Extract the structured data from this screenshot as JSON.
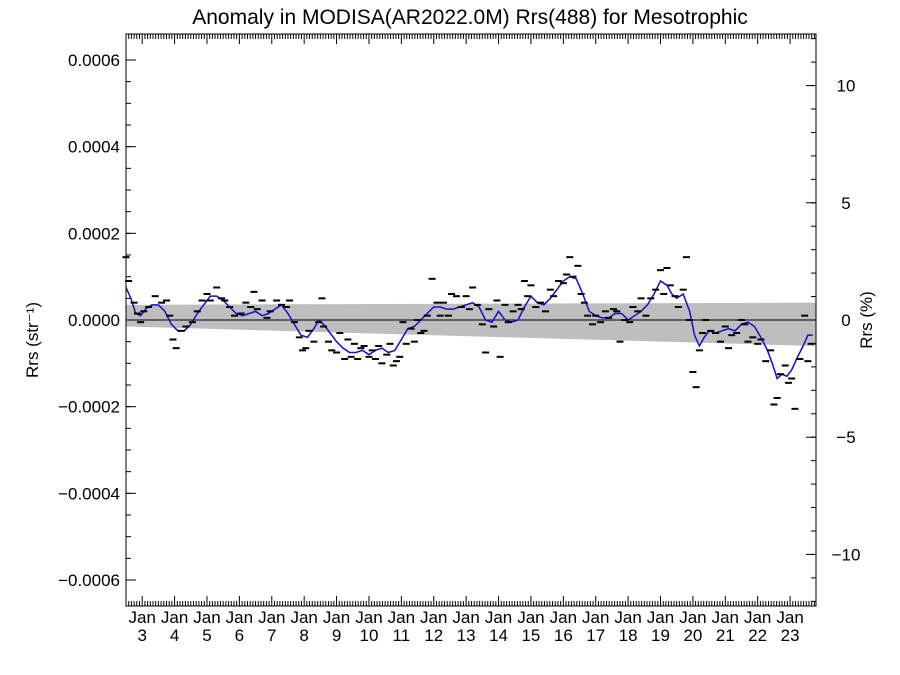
{
  "chart_data": {
    "type": "scatter",
    "title": "Anomaly in MODISA(AR2022.0M) Rrs(488) for Mesotrophic",
    "ylabel_left": "Rrs (str⁻¹)",
    "ylabel_right": "Rrs (%)",
    "xlabel": "",
    "x_unit": "year (2002 + fraction)",
    "xlim": [
      2002.5,
      2023.8
    ],
    "ylim_left": [
      -0.00066,
      0.00066
    ],
    "ylim_right": [
      -12.2,
      12.2
    ],
    "left_ticks": [
      {
        "value": 0.0006,
        "label": "0.0006"
      },
      {
        "value": 0.0004,
        "label": "0.0004"
      },
      {
        "value": 0.0002,
        "label": "0.0002"
      },
      {
        "value": 0.0,
        "label": "0.0000"
      },
      {
        "value": -0.0002,
        "label": "−0.0002"
      },
      {
        "value": -0.0004,
        "label": "−0.0004"
      },
      {
        "value": -0.0006,
        "label": "−0.0006"
      }
    ],
    "right_ticks": [
      {
        "value": 10,
        "label": "10"
      },
      {
        "value": 5,
        "label": "5"
      },
      {
        "value": 0,
        "label": "0"
      },
      {
        "value": -5,
        "label": "−5"
      },
      {
        "value": -10,
        "label": "−10"
      }
    ],
    "x_tick_month_label": "Jan",
    "x_ticks": [
      {
        "value": 2003,
        "label": "3"
      },
      {
        "value": 2004,
        "label": "4"
      },
      {
        "value": 2005,
        "label": "5"
      },
      {
        "value": 2006,
        "label": "6"
      },
      {
        "value": 2007,
        "label": "7"
      },
      {
        "value": 2008,
        "label": "8"
      },
      {
        "value": 2009,
        "label": "9"
      },
      {
        "value": 2010,
        "label": "10"
      },
      {
        "value": 2011,
        "label": "11"
      },
      {
        "value": 2012,
        "label": "12"
      },
      {
        "value": 2013,
        "label": "13"
      },
      {
        "value": 2014,
        "label": "14"
      },
      {
        "value": 2015,
        "label": "15"
      },
      {
        "value": 2016,
        "label": "16"
      },
      {
        "value": 2017,
        "label": "17"
      },
      {
        "value": 2018,
        "label": "18"
      },
      {
        "value": 2019,
        "label": "19"
      },
      {
        "value": 2020,
        "label": "20"
      },
      {
        "value": 2021,
        "label": "21"
      },
      {
        "value": 2022,
        "label": "22"
      },
      {
        "value": 2023,
        "label": "23"
      }
    ],
    "band": {
      "color": "#bebebe",
      "upper": [
        [
          2002.5,
          3.5e-05
        ],
        [
          2023.8,
          4e-05
        ]
      ],
      "lower": [
        [
          2002.5,
          -1.5e-05
        ],
        [
          2023.8,
          -6e-05
        ]
      ]
    },
    "zero_line": true,
    "smooth_series": {
      "color": "#1010d0",
      "points": [
        [
          2002.5,
          7.5e-05
        ],
        [
          2002.65,
          5e-05
        ],
        [
          2002.8,
          1.5e-05
        ],
        [
          2002.95,
          1e-05
        ],
        [
          2003.1,
          2.5e-05
        ],
        [
          2003.3,
          3.5e-05
        ],
        [
          2003.5,
          3.5e-05
        ],
        [
          2003.7,
          2e-05
        ],
        [
          2003.9,
          -1e-05
        ],
        [
          2004.1,
          -2.5e-05
        ],
        [
          2004.3,
          -2.5e-05
        ],
        [
          2004.5,
          -1e-05
        ],
        [
          2004.7,
          1.5e-05
        ],
        [
          2004.9,
          3.5e-05
        ],
        [
          2005.1,
          5.5e-05
        ],
        [
          2005.3,
          5.5e-05
        ],
        [
          2005.5,
          4.5e-05
        ],
        [
          2005.7,
          3e-05
        ],
        [
          2005.9,
          1.5e-05
        ],
        [
          2006.1,
          1e-05
        ],
        [
          2006.3,
          1.5e-05
        ],
        [
          2006.5,
          2e-05
        ],
        [
          2006.7,
          1e-05
        ],
        [
          2006.9,
          1.5e-05
        ],
        [
          2007.1,
          2.5e-05
        ],
        [
          2007.3,
          3.5e-05
        ],
        [
          2007.5,
          1.5e-05
        ],
        [
          2007.7,
          -1e-05
        ],
        [
          2007.9,
          -3.5e-05
        ],
        [
          2008.1,
          -4e-05
        ],
        [
          2008.3,
          -2e-05
        ],
        [
          2008.45,
          0.0
        ],
        [
          2008.6,
          -1e-05
        ],
        [
          2008.8,
          -3e-05
        ],
        [
          2009.0,
          -5e-05
        ],
        [
          2009.2,
          -6.5e-05
        ],
        [
          2009.4,
          -7.5e-05
        ],
        [
          2009.6,
          -7.5e-05
        ],
        [
          2009.8,
          -7e-05
        ],
        [
          2010.0,
          -8e-05
        ],
        [
          2010.2,
          -7e-05
        ],
        [
          2010.4,
          -6.5e-05
        ],
        [
          2010.6,
          -7.5e-05
        ],
        [
          2010.8,
          -7e-05
        ],
        [
          2011.0,
          -4.5e-05
        ],
        [
          2011.2,
          -2e-05
        ],
        [
          2011.4,
          -1.5e-05
        ],
        [
          2011.6,
          -0.0
        ],
        [
          2011.8,
          1.5e-05
        ],
        [
          2012.0,
          3e-05
        ],
        [
          2012.2,
          3e-05
        ],
        [
          2012.4,
          2.5e-05
        ],
        [
          2012.6,
          2.5e-05
        ],
        [
          2012.8,
          3e-05
        ],
        [
          2013.0,
          3.5e-05
        ],
        [
          2013.2,
          4e-05
        ],
        [
          2013.4,
          3e-05
        ],
        [
          2013.6,
          0.0
        ],
        [
          2013.8,
          -5e-06
        ],
        [
          2014.0,
          2e-05
        ],
        [
          2014.2,
          0.0
        ],
        [
          2014.4,
          -5e-06
        ],
        [
          2014.6,
          0.0
        ],
        [
          2014.8,
          3e-05
        ],
        [
          2015.0,
          5.5e-05
        ],
        [
          2015.2,
          4e-05
        ],
        [
          2015.4,
          3.5e-05
        ],
        [
          2015.6,
          5e-05
        ],
        [
          2015.8,
          7e-05
        ],
        [
          2016.0,
          9e-05
        ],
        [
          2016.2,
          0.0001
        ],
        [
          2016.4,
          9.5e-05
        ],
        [
          2016.6,
          6e-05
        ],
        [
          2016.8,
          2e-05
        ],
        [
          2017.0,
          1e-05
        ],
        [
          2017.2,
          5e-06
        ],
        [
          2017.4,
          5e-06
        ],
        [
          2017.6,
          1.5e-05
        ],
        [
          2017.8,
          1.5e-05
        ],
        [
          2018.0,
          0.0
        ],
        [
          2018.2,
          1e-05
        ],
        [
          2018.4,
          2e-05
        ],
        [
          2018.6,
          3.5e-05
        ],
        [
          2018.8,
          6e-05
        ],
        [
          2019.0,
          9e-05
        ],
        [
          2019.2,
          8e-05
        ],
        [
          2019.35,
          6e-05
        ],
        [
          2019.5,
          5e-05
        ],
        [
          2019.7,
          6e-05
        ],
        [
          2019.9,
          2e-05
        ],
        [
          2020.05,
          -3.5e-05
        ],
        [
          2020.2,
          -6e-05
        ],
        [
          2020.35,
          -4e-05
        ],
        [
          2020.5,
          -2.5e-05
        ],
        [
          2020.7,
          -3e-05
        ],
        [
          2020.9,
          -2.5e-05
        ],
        [
          2021.1,
          -2e-05
        ],
        [
          2021.3,
          -2.5e-05
        ],
        [
          2021.5,
          -1e-05
        ],
        [
          2021.7,
          -5e-06
        ],
        [
          2021.9,
          -1.5e-05
        ],
        [
          2022.1,
          -4e-05
        ],
        [
          2022.3,
          -7e-05
        ],
        [
          2022.45,
          -0.0001
        ],
        [
          2022.6,
          -0.000135
        ],
        [
          2022.75,
          -0.000125
        ],
        [
          2022.9,
          -0.00013
        ],
        [
          2023.05,
          -0.000115
        ],
        [
          2023.2,
          -9e-05
        ],
        [
          2023.4,
          -6e-05
        ],
        [
          2023.55,
          -3.5e-05
        ],
        [
          2023.7,
          -3.5e-05
        ]
      ]
    },
    "points": [
      [
        2002.5,
        0.000145
      ],
      [
        2002.58,
        9e-05
      ],
      [
        2002.75,
        4e-05
      ],
      [
        2002.85,
        1.5e-05
      ],
      [
        2002.95,
        -5e-06
      ],
      [
        2003.05,
        2e-05
      ],
      [
        2003.2,
        3e-05
      ],
      [
        2003.4,
        5.5e-05
      ],
      [
        2003.6,
        4e-05
      ],
      [
        2003.75,
        4.5e-05
      ],
      [
        2003.85,
        1e-05
      ],
      [
        2003.95,
        -4.5e-05
      ],
      [
        2004.05,
        -6.5e-05
      ],
      [
        2004.2,
        -2.5e-05
      ],
      [
        2004.35,
        -1.5e-05
      ],
      [
        2004.55,
        -5e-06
      ],
      [
        2004.7,
        2e-05
      ],
      [
        2004.85,
        4.5e-05
      ],
      [
        2005.0,
        6e-05
      ],
      [
        2005.1,
        4.5e-05
      ],
      [
        2005.3,
        7.5e-05
      ],
      [
        2005.45,
        5e-05
      ],
      [
        2005.55,
        4.5e-05
      ],
      [
        2005.7,
        3e-05
      ],
      [
        2005.85,
        1e-05
      ],
      [
        2006.05,
        1.5e-05
      ],
      [
        2006.2,
        4e-05
      ],
      [
        2006.35,
        3e-05
      ],
      [
        2006.45,
        6.5e-05
      ],
      [
        2006.55,
        2.5e-05
      ],
      [
        2006.7,
        4.5e-05
      ],
      [
        2006.85,
        5e-06
      ],
      [
        2006.95,
        2e-05
      ],
      [
        2007.15,
        4.5e-05
      ],
      [
        2007.3,
        3.5e-05
      ],
      [
        2007.45,
        3e-05
      ],
      [
        2007.55,
        4.5e-05
      ],
      [
        2007.7,
        -5e-06
      ],
      [
        2007.85,
        -4e-05
      ],
      [
        2007.95,
        -7e-05
      ],
      [
        2008.05,
        -6.5e-05
      ],
      [
        2008.15,
        -2.5e-05
      ],
      [
        2008.3,
        -5e-05
      ],
      [
        2008.45,
        -5e-06
      ],
      [
        2008.55,
        5e-05
      ],
      [
        2008.6,
        -1.5e-05
      ],
      [
        2008.75,
        -5e-05
      ],
      [
        2008.85,
        -7e-05
      ],
      [
        2009.0,
        -7.5e-05
      ],
      [
        2009.1,
        -3e-05
      ],
      [
        2009.25,
        -9e-05
      ],
      [
        2009.35,
        -4.5e-05
      ],
      [
        2009.45,
        -8.5e-05
      ],
      [
        2009.55,
        -5.5e-05
      ],
      [
        2009.65,
        -9e-05
      ],
      [
        2009.75,
        -6.5e-05
      ],
      [
        2009.85,
        -6e-05
      ],
      [
        2010.0,
        -8.5e-05
      ],
      [
        2010.1,
        -7e-05
      ],
      [
        2010.2,
        -9e-05
      ],
      [
        2010.3,
        -6e-05
      ],
      [
        2010.4,
        -0.0001
      ],
      [
        2010.55,
        -8e-05
      ],
      [
        2010.65,
        -5.5e-05
      ],
      [
        2010.75,
        -0.000105
      ],
      [
        2010.85,
        -9.5e-05
      ],
      [
        2010.95,
        -8.5e-05
      ],
      [
        2011.05,
        -5e-06
      ],
      [
        2011.15,
        -5.5e-05
      ],
      [
        2011.3,
        -2e-05
      ],
      [
        2011.4,
        -5e-05
      ],
      [
        2011.5,
        0.0
      ],
      [
        2011.6,
        -3e-05
      ],
      [
        2011.7,
        -2.5e-05
      ],
      [
        2011.8,
        1e-05
      ],
      [
        2011.95,
        9.5e-05
      ],
      [
        2012.1,
        4e-05
      ],
      [
        2012.2,
        1e-05
      ],
      [
        2012.3,
        4e-05
      ],
      [
        2012.45,
        1e-05
      ],
      [
        2012.55,
        6e-05
      ],
      [
        2012.7,
        5.5e-05
      ],
      [
        2012.85,
        3e-05
      ],
      [
        2013.0,
        5.5e-05
      ],
      [
        2013.1,
        2.5e-05
      ],
      [
        2013.2,
        7.5e-05
      ],
      [
        2013.35,
        3.5e-05
      ],
      [
        2013.5,
        -1e-05
      ],
      [
        2013.6,
        -7.5e-05
      ],
      [
        2013.7,
        2.5e-05
      ],
      [
        2013.85,
        -1.5e-05
      ],
      [
        2013.95,
        4.5e-05
      ],
      [
        2014.05,
        -8.5e-05
      ],
      [
        2014.2,
        3.5e-05
      ],
      [
        2014.3,
        -5e-06
      ],
      [
        2014.45,
        2e-05
      ],
      [
        2014.6,
        3.5e-05
      ],
      [
        2014.7,
        2.5e-05
      ],
      [
        2014.8,
        9e-05
      ],
      [
        2014.9,
        5.5e-05
      ],
      [
        2015.0,
        8e-05
      ],
      [
        2015.15,
        3e-05
      ],
      [
        2015.3,
        4e-05
      ],
      [
        2015.45,
        2e-05
      ],
      [
        2015.6,
        7e-05
      ],
      [
        2015.7,
        5.5e-05
      ],
      [
        2015.85,
        9e-05
      ],
      [
        2016.0,
        8.5e-05
      ],
      [
        2016.1,
        0.000105
      ],
      [
        2016.2,
        0.000145
      ],
      [
        2016.3,
        0.0001
      ],
      [
        2016.45,
        0.000125
      ],
      [
        2016.55,
        6e-05
      ],
      [
        2016.65,
        4e-05
      ],
      [
        2016.75,
        1e-05
      ],
      [
        2016.9,
        -1e-05
      ],
      [
        2017.0,
        1e-05
      ],
      [
        2017.15,
        -5e-06
      ],
      [
        2017.3,
        2e-05
      ],
      [
        2017.4,
        5e-06
      ],
      [
        2017.55,
        2.5e-05
      ],
      [
        2017.65,
        2e-05
      ],
      [
        2017.75,
        -5e-05
      ],
      [
        2017.9,
        0.0
      ],
      [
        2018.05,
        -5e-06
      ],
      [
        2018.15,
        3e-05
      ],
      [
        2018.3,
        2e-05
      ],
      [
        2018.4,
        5e-05
      ],
      [
        2018.55,
        1e-05
      ],
      [
        2018.7,
        5e-05
      ],
      [
        2018.85,
        7e-05
      ],
      [
        2019.0,
        0.000115
      ],
      [
        2019.1,
        6e-05
      ],
      [
        2019.2,
        0.00012
      ],
      [
        2019.3,
        8e-05
      ],
      [
        2019.45,
        5.5e-05
      ],
      [
        2019.55,
        3e-05
      ],
      [
        2019.7,
        7e-05
      ],
      [
        2019.8,
        0.000145
      ],
      [
        2019.9,
        0.0
      ],
      [
        2020.0,
        -0.00012
      ],
      [
        2020.1,
        -0.000155
      ],
      [
        2020.2,
        -7e-05
      ],
      [
        2020.3,
        -3e-05
      ],
      [
        2020.4,
        0.0
      ],
      [
        2020.55,
        -2.5e-05
      ],
      [
        2020.7,
        -3e-05
      ],
      [
        2020.85,
        -5e-05
      ],
      [
        2021.0,
        -1.5e-05
      ],
      [
        2021.1,
        -6.5e-05
      ],
      [
        2021.2,
        -3.5e-05
      ],
      [
        2021.35,
        -3e-05
      ],
      [
        2021.5,
        0.0
      ],
      [
        2021.6,
        -1e-05
      ],
      [
        2021.7,
        -5e-05
      ],
      [
        2021.85,
        -4e-05
      ],
      [
        2022.0,
        -5.5e-05
      ],
      [
        2022.1,
        -4.5e-05
      ],
      [
        2022.25,
        -9.5e-05
      ],
      [
        2022.4,
        -7e-05
      ],
      [
        2022.5,
        -0.000195
      ],
      [
        2022.6,
        -0.00018
      ],
      [
        2022.7,
        -0.000125
      ],
      [
        2022.85,
        -0.000105
      ],
      [
        2022.95,
        -0.000145
      ],
      [
        2023.05,
        -0.000135
      ],
      [
        2023.15,
        -0.000205
      ],
      [
        2023.3,
        -9e-05
      ],
      [
        2023.45,
        1e-05
      ],
      [
        2023.55,
        -9.5e-05
      ],
      [
        2023.65,
        -5.5e-05
      ]
    ]
  }
}
